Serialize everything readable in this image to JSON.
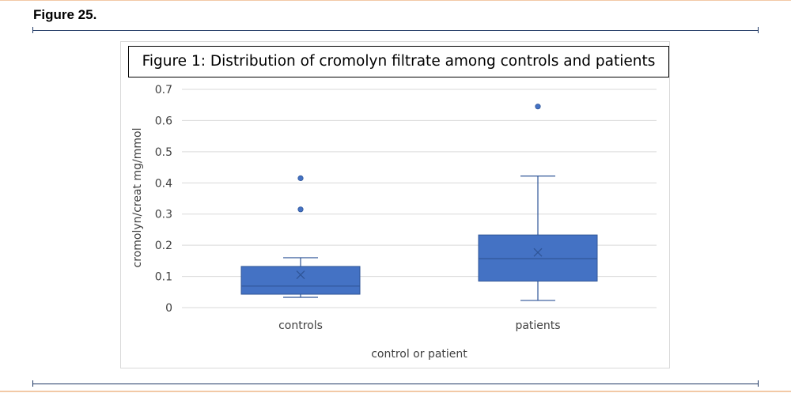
{
  "figure_label": "Figure 25.",
  "colors": {
    "box_fill": "#4472c4",
    "box_stroke": "#2f5597",
    "grid": "#d9d9d9",
    "rule": "#1f3864",
    "page_border": "#f2c9a6"
  },
  "chart_data": {
    "type": "box",
    "title": "Figure 1: Distribution of cromolyn filtrate among controls and patients",
    "xlabel": "control or patient",
    "ylabel": "cromolyn/creat mg/mmol",
    "ylim": [
      0,
      0.7
    ],
    "yticks": [
      "0",
      "0.1",
      "0.2",
      "0.3",
      "0.4",
      "0.5",
      "0.6",
      "0.7"
    ],
    "grid": true,
    "legend": "none",
    "categories": [
      "controls",
      "patients"
    ],
    "series": [
      {
        "category": "controls",
        "whisker_low": 0.033,
        "q1": 0.043,
        "median": 0.069,
        "q3": 0.132,
        "whisker_high": 0.16,
        "mean": 0.105,
        "outliers": [
          0.315,
          0.415
        ]
      },
      {
        "category": "patients",
        "whisker_low": 0.023,
        "q1": 0.085,
        "median": 0.157,
        "q3": 0.233,
        "whisker_high": 0.422,
        "mean": 0.177,
        "outliers": [
          0.645
        ]
      }
    ]
  }
}
